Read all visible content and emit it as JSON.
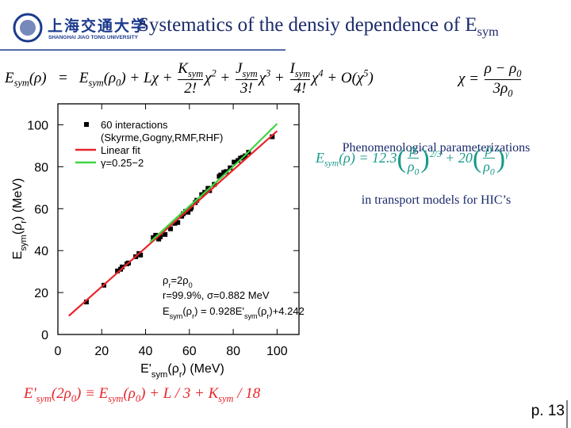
{
  "header": {
    "logo_cn": "上海交通大学",
    "logo_en": "SHANGHAI JIAO TONG UNIVERSITY",
    "title": [
      "Systematics of the densiy dependence of E",
      {
        "sub": "sym"
      }
    ]
  },
  "formula_expansion": [
    "E",
    {
      "sub": "sym"
    },
    "(ρ)   =   E",
    {
      "sub": "sym"
    },
    "(ρ",
    {
      "sub": "0"
    },
    ") + Lχ + ",
    {
      "frac": [
        [
          "K",
          {
            "sub": "sym"
          }
        ],
        [
          "2!"
        ]
      ]
    },
    "χ",
    {
      "sup": "2"
    },
    " + ",
    {
      "frac": [
        [
          "J",
          {
            "sub": "sym"
          }
        ],
        [
          "3!"
        ]
      ]
    },
    "χ",
    {
      "sup": "3"
    },
    " + ",
    {
      "frac": [
        [
          "I",
          {
            "sub": "sym"
          }
        ],
        [
          "4!"
        ]
      ]
    },
    "χ",
    {
      "sup": "4"
    },
    " + O(χ",
    {
      "sup": "5"
    },
    ")"
  ],
  "formula_chi": [
    "χ = ",
    {
      "frac": [
        [
          "ρ − ρ",
          {
            "sub": "0"
          }
        ],
        [
          "3ρ",
          {
            "sub": "0"
          }
        ]
      ]
    }
  ],
  "chart_data": {
    "type": "scatter",
    "xlabel": [
      "E'",
      {
        "sub": "sym"
      },
      "(ρ",
      {
        "sub": "r"
      },
      ") (MeV)"
    ],
    "ylabel": [
      "E",
      {
        "sub": "sym"
      },
      "(ρ",
      {
        "sub": "r"
      },
      ") (MeV)"
    ],
    "xlim": [
      0,
      110
    ],
    "ylim": [
      0,
      110
    ],
    "xticks": [
      0,
      20,
      40,
      60,
      80,
      100
    ],
    "yticks": [
      0,
      20,
      40,
      60,
      80,
      100
    ],
    "series": [
      {
        "name": "60 interactions",
        "note": "(Skyrme,Gogny,RMF,RHF)",
        "type": "scatter",
        "color": "#000000",
        "x": [
          13.0,
          21.0,
          27.2,
          28.6,
          29.3,
          31.5,
          32.2,
          35.5,
          37.0,
          37.7,
          43.5,
          44.6,
          45.3,
          46.0,
          46.7,
          48.9,
          51.4,
          53.3,
          54.7,
          56.5,
          57.2,
          58.3,
          59.4,
          60.5,
          60.9,
          62.7,
          63.4,
          65.6,
          67.0,
          68.5,
          69.2,
          71.4,
          73.6,
          74.3,
          75.7,
          76.8,
          78.6,
          80.4,
          82.2,
          83.3,
          84.4,
          85.5,
          87.0,
          97.8
        ],
        "values": [
          15.5,
          23.5,
          30.3,
          31.1,
          32.2,
          33.7,
          34.1,
          37.1,
          38.6,
          37.9,
          46.2,
          47.3,
          47.0,
          45.5,
          46.6,
          47.7,
          50.4,
          53.0,
          53.4,
          56.4,
          57.6,
          58.7,
          58.3,
          59.8,
          60.6,
          62.9,
          64.0,
          66.7,
          67.8,
          69.7,
          68.6,
          71.6,
          75.4,
          76.1,
          77.3,
          77.7,
          79.5,
          82.2,
          83.0,
          84.1,
          84.5,
          85.2,
          86.9,
          94.3
        ]
      },
      {
        "name": "Linear fit",
        "type": "line",
        "color": "#e8242b",
        "x": [
          5,
          100
        ],
        "values": [
          8.88,
          97.04
        ]
      },
      {
        "name": "γ=0.25−2",
        "type": "line",
        "color": "#3ed43e",
        "x": [
          42,
          55,
          70,
          85,
          100
        ],
        "values": [
          44,
          56.5,
          70.5,
          85,
          100.5
        ]
      }
    ],
    "annotations": [
      [
        "ρ",
        {
          "sub": "r"
        },
        "=2ρ",
        {
          "sub": "0"
        }
      ],
      [
        "r=99.9%, σ=0.882 MeV"
      ],
      [
        "E",
        {
          "sub": "sym"
        },
        "(ρ",
        {
          "sub": "r"
        },
        ") = 0.928E'",
        {
          "sub": "sym"
        },
        "(ρ",
        {
          "sub": "r"
        },
        ")+4.242"
      ]
    ]
  },
  "side_text": [
    "Phenomenological parameterizations",
    "in transport models for HIC’s"
  ],
  "formula_transport": [
    "E",
    {
      "sub": "sym"
    },
    "(ρ) = 12.3",
    {
      "big": "("
    },
    {
      "frac": [
        [
          "ρ"
        ],
        [
          "ρ",
          {
            "sub": "0"
          }
        ]
      ]
    },
    {
      "big": ")"
    },
    {
      "sup": "2/3"
    },
    " + 20",
    {
      "big": "("
    },
    {
      "frac": [
        [
          "ρ"
        ],
        [
          "ρ",
          {
            "sub": "0"
          }
        ]
      ]
    },
    {
      "big": ")"
    },
    {
      "sup": "γ"
    }
  ],
  "formula_slope": [
    "E'",
    {
      "sub": "sym"
    },
    "(2ρ",
    {
      "sub": "0"
    },
    ") ≡ E",
    {
      "sub": "sym"
    },
    "(ρ",
    {
      "sub": "0"
    },
    ") + L / 3 + K",
    {
      "sub": "sym"
    },
    " / 18"
  ],
  "page_number": "p. 13"
}
